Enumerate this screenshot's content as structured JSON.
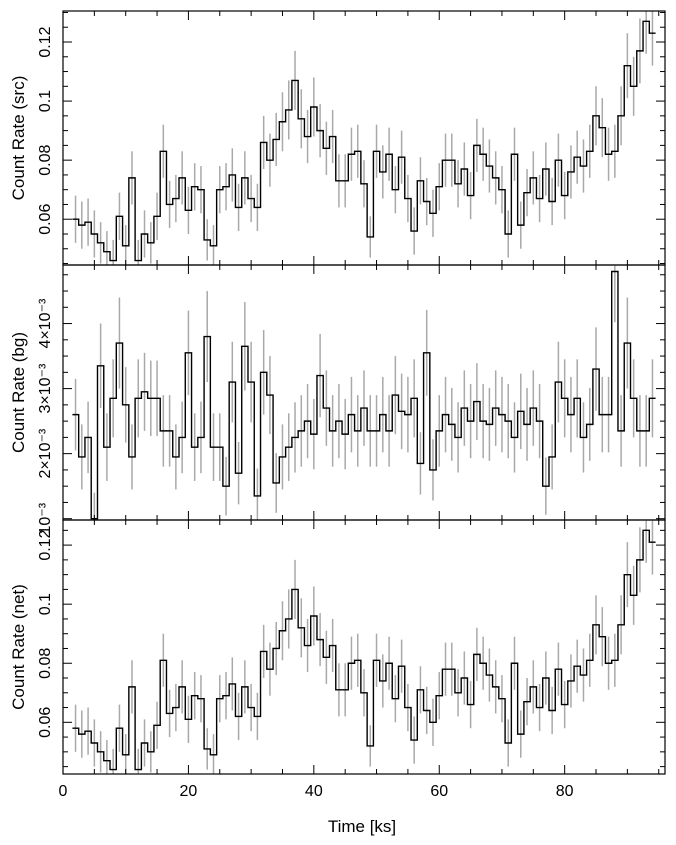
{
  "xlabel": "Time [ks]",
  "chart_data": [
    {
      "type": "line",
      "name": "src",
      "ylabel": "Count Rate (src)",
      "xlim": [
        0,
        96
      ],
      "ylim": [
        0.0445,
        0.1305
      ],
      "ytick_values": [
        0.06,
        0.08,
        0.1,
        0.12
      ],
      "ytick_labels": [
        "0.06",
        "0.08",
        "0.1",
        "0.12"
      ],
      "xtick_values": [
        0,
        20,
        40,
        60,
        80
      ],
      "xtick_labels": [
        "0",
        "20",
        "40",
        "60",
        "80"
      ],
      "show_xtick_labels": false,
      "bin_width": 1.0,
      "x": [
        2,
        3,
        4,
        5,
        6,
        7,
        8,
        9,
        10,
        11,
        12,
        13,
        14,
        15,
        16,
        17,
        18,
        19,
        20,
        21,
        22,
        23,
        24,
        25,
        26,
        27,
        28,
        29,
        30,
        31,
        32,
        33,
        34,
        35,
        36,
        37,
        38,
        39,
        40,
        41,
        42,
        43,
        44,
        45,
        46,
        47,
        48,
        49,
        50,
        51,
        52,
        53,
        54,
        55,
        56,
        57,
        58,
        59,
        60,
        61,
        62,
        63,
        64,
        65,
        66,
        67,
        68,
        69,
        70,
        71,
        72,
        73,
        74,
        75,
        76,
        77,
        78,
        79,
        80,
        81,
        82,
        83,
        84,
        85,
        86,
        87,
        88,
        89,
        90,
        91,
        92,
        93,
        94
      ],
      "y": [
        0.06,
        0.058,
        0.059,
        0.055,
        0.052,
        0.049,
        0.046,
        0.061,
        0.051,
        0.074,
        0.046,
        0.055,
        0.052,
        0.061,
        0.083,
        0.065,
        0.067,
        0.074,
        0.063,
        0.071,
        0.07,
        0.053,
        0.051,
        0.07,
        0.071,
        0.075,
        0.064,
        0.074,
        0.067,
        0.064,
        0.086,
        0.08,
        0.087,
        0.093,
        0.097,
        0.107,
        0.094,
        0.088,
        0.098,
        0.09,
        0.084,
        0.088,
        0.073,
        0.073,
        0.082,
        0.083,
        0.072,
        0.054,
        0.083,
        0.076,
        0.082,
        0.07,
        0.081,
        0.067,
        0.056,
        0.073,
        0.066,
        0.062,
        0.071,
        0.08,
        0.08,
        0.072,
        0.077,
        0.068,
        0.085,
        0.082,
        0.078,
        0.074,
        0.07,
        0.055,
        0.082,
        0.058,
        0.069,
        0.074,
        0.067,
        0.077,
        0.066,
        0.08,
        0.068,
        0.076,
        0.081,
        0.078,
        0.083,
        0.095,
        0.091,
        0.082,
        0.083,
        0.095,
        0.112,
        0.105,
        0.117,
        0.127,
        0.123
      ],
      "yerr": [
        0.008,
        0.008,
        0.008,
        0.008,
        0.007,
        0.007,
        0.007,
        0.008,
        0.007,
        0.009,
        0.007,
        0.008,
        0.007,
        0.008,
        0.009,
        0.008,
        0.008,
        0.009,
        0.008,
        0.008,
        0.008,
        0.007,
        0.007,
        0.008,
        0.008,
        0.009,
        0.008,
        0.009,
        0.008,
        0.008,
        0.009,
        0.009,
        0.009,
        0.01,
        0.01,
        0.01,
        0.01,
        0.009,
        0.01,
        0.009,
        0.009,
        0.009,
        0.009,
        0.009,
        0.009,
        0.009,
        0.008,
        0.007,
        0.009,
        0.009,
        0.009,
        0.008,
        0.009,
        0.008,
        0.008,
        0.008,
        0.008,
        0.008,
        0.008,
        0.009,
        0.009,
        0.008,
        0.009,
        0.008,
        0.009,
        0.009,
        0.009,
        0.009,
        0.008,
        0.008,
        0.009,
        0.008,
        0.008,
        0.009,
        0.008,
        0.009,
        0.008,
        0.009,
        0.008,
        0.009,
        0.009,
        0.009,
        0.009,
        0.01,
        0.01,
        0.009,
        0.009,
        0.01,
        0.011,
        0.01,
        0.011,
        0.011,
        0.011
      ]
    },
    {
      "type": "line",
      "name": "bg",
      "ylabel": "Count Rate (bg)",
      "xlim": [
        0,
        96
      ],
      "ylim": [
        0.00098,
        0.0049
      ],
      "ytick_values": [
        0.001,
        0.002,
        0.003,
        0.004
      ],
      "ytick_labels": [
        "10⁻³",
        "2×10⁻³",
        "3×10⁻³",
        "4×10⁻³"
      ],
      "xtick_values": [
        0,
        20,
        40,
        60,
        80
      ],
      "xtick_labels": [
        "0",
        "20",
        "40",
        "60",
        "80"
      ],
      "show_xtick_labels": false,
      "bin_width": 1.0,
      "x": [
        2,
        3,
        4,
        5,
        6,
        7,
        8,
        9,
        10,
        11,
        12,
        13,
        14,
        15,
        16,
        17,
        18,
        19,
        20,
        21,
        22,
        23,
        24,
        25,
        26,
        27,
        28,
        29,
        30,
        31,
        32,
        33,
        34,
        35,
        36,
        37,
        38,
        39,
        40,
        41,
        42,
        43,
        44,
        45,
        46,
        47,
        48,
        49,
        50,
        51,
        52,
        53,
        54,
        55,
        56,
        57,
        58,
        59,
        60,
        61,
        62,
        63,
        64,
        65,
        66,
        67,
        68,
        69,
        70,
        71,
        72,
        73,
        74,
        75,
        76,
        77,
        78,
        79,
        80,
        81,
        82,
        83,
        84,
        85,
        86,
        87,
        88,
        89,
        90,
        91,
        92,
        93,
        94
      ],
      "y": [
        0.0026,
        0.00195,
        0.00225,
        0.001,
        0.00335,
        0.0021,
        0.00285,
        0.0037,
        0.00275,
        0.00195,
        0.00285,
        0.00295,
        0.00285,
        0.00285,
        0.00235,
        0.00235,
        0.00195,
        0.00225,
        0.00355,
        0.0021,
        0.00225,
        0.0038,
        0.0021,
        0.0021,
        0.0015,
        0.0031,
        0.0017,
        0.00365,
        0.0031,
        0.00135,
        0.00325,
        0.0029,
        0.00155,
        0.00195,
        0.0021,
        0.00225,
        0.00235,
        0.0025,
        0.0023,
        0.0032,
        0.0027,
        0.00235,
        0.0025,
        0.0023,
        0.0026,
        0.00235,
        0.0027,
        0.00235,
        0.00235,
        0.0026,
        0.00235,
        0.0029,
        0.00265,
        0.0026,
        0.00285,
        0.00185,
        0.00355,
        0.00175,
        0.00235,
        0.0026,
        0.00245,
        0.00225,
        0.0027,
        0.0025,
        0.0028,
        0.0025,
        0.00245,
        0.0027,
        0.0026,
        0.0025,
        0.00225,
        0.00265,
        0.00245,
        0.0027,
        0.0025,
        0.0015,
        0.00195,
        0.0031,
        0.00285,
        0.0026,
        0.00285,
        0.00225,
        0.00245,
        0.0033,
        0.0026,
        0.0026,
        0.0048,
        0.00235,
        0.0037,
        0.00285,
        0.00235,
        0.00235,
        0.00285
      ],
      "yerr": [
        0.00055,
        0.0005,
        0.00055,
        0.0004,
        0.00065,
        0.00052,
        0.0006,
        0.0007,
        0.00058,
        0.0005,
        0.0006,
        0.0006,
        0.00058,
        0.00058,
        0.00055,
        0.00055,
        0.0005,
        0.00055,
        0.00065,
        0.00052,
        0.00055,
        0.0007,
        0.00052,
        0.00052,
        0.00045,
        0.00062,
        0.00048,
        0.00068,
        0.00062,
        0.00042,
        0.00065,
        0.0006,
        0.00046,
        0.0005,
        0.00052,
        0.00054,
        0.00055,
        0.00057,
        0.00054,
        0.00064,
        0.00058,
        0.00055,
        0.00057,
        0.00054,
        0.00058,
        0.00055,
        0.00058,
        0.00055,
        0.00055,
        0.00058,
        0.00055,
        0.0006,
        0.00058,
        0.00058,
        0.0006,
        0.00048,
        0.00066,
        0.00047,
        0.00055,
        0.00058,
        0.00056,
        0.00054,
        0.00058,
        0.00057,
        0.00059,
        0.00057,
        0.00056,
        0.00058,
        0.00058,
        0.00057,
        0.00054,
        0.00058,
        0.00056,
        0.00058,
        0.00057,
        0.00044,
        0.0005,
        0.00062,
        0.0006,
        0.00058,
        0.0006,
        0.00054,
        0.00056,
        0.00064,
        0.00058,
        0.00058,
        0.00078,
        0.00055,
        0.0007,
        0.0006,
        0.00055,
        0.00055,
        0.0006
      ]
    },
    {
      "type": "line",
      "name": "net",
      "ylabel": "Count Rate (net)",
      "xlim": [
        0,
        96
      ],
      "ylim": [
        0.0425,
        0.1285
      ],
      "ytick_values": [
        0.06,
        0.08,
        0.1,
        0.12
      ],
      "ytick_labels": [
        "0.06",
        "0.08",
        "0.1",
        "0.12"
      ],
      "xtick_values": [
        0,
        20,
        40,
        60,
        80
      ],
      "xtick_labels": [
        "0",
        "20",
        "40",
        "60",
        "80"
      ],
      "show_xtick_labels": true,
      "bin_width": 1.0,
      "x": [
        2,
        3,
        4,
        5,
        6,
        7,
        8,
        9,
        10,
        11,
        12,
        13,
        14,
        15,
        16,
        17,
        18,
        19,
        20,
        21,
        22,
        23,
        24,
        25,
        26,
        27,
        28,
        29,
        30,
        31,
        32,
        33,
        34,
        35,
        36,
        37,
        38,
        39,
        40,
        41,
        42,
        43,
        44,
        45,
        46,
        47,
        48,
        49,
        50,
        51,
        52,
        53,
        54,
        55,
        56,
        57,
        58,
        59,
        60,
        61,
        62,
        63,
        64,
        65,
        66,
        67,
        68,
        69,
        70,
        71,
        72,
        73,
        74,
        75,
        76,
        77,
        78,
        79,
        80,
        81,
        82,
        83,
        84,
        85,
        86,
        87,
        88,
        89,
        90,
        91,
        92,
        93,
        94
      ],
      "y": [
        0.058,
        0.056,
        0.057,
        0.053,
        0.05,
        0.047,
        0.044,
        0.058,
        0.049,
        0.072,
        0.044,
        0.053,
        0.05,
        0.059,
        0.081,
        0.063,
        0.065,
        0.072,
        0.061,
        0.069,
        0.068,
        0.051,
        0.049,
        0.068,
        0.069,
        0.073,
        0.062,
        0.072,
        0.065,
        0.062,
        0.084,
        0.078,
        0.085,
        0.091,
        0.095,
        0.105,
        0.092,
        0.086,
        0.096,
        0.088,
        0.082,
        0.086,
        0.071,
        0.071,
        0.08,
        0.081,
        0.07,
        0.052,
        0.081,
        0.074,
        0.08,
        0.068,
        0.079,
        0.065,
        0.054,
        0.071,
        0.064,
        0.06,
        0.069,
        0.078,
        0.078,
        0.07,
        0.075,
        0.066,
        0.083,
        0.08,
        0.076,
        0.072,
        0.068,
        0.053,
        0.08,
        0.056,
        0.067,
        0.072,
        0.065,
        0.075,
        0.064,
        0.078,
        0.066,
        0.074,
        0.079,
        0.076,
        0.081,
        0.093,
        0.089,
        0.08,
        0.081,
        0.093,
        0.11,
        0.103,
        0.115,
        0.125,
        0.121
      ],
      "yerr": [
        0.008,
        0.008,
        0.008,
        0.008,
        0.007,
        0.007,
        0.007,
        0.008,
        0.007,
        0.009,
        0.007,
        0.008,
        0.007,
        0.008,
        0.009,
        0.008,
        0.008,
        0.009,
        0.008,
        0.008,
        0.008,
        0.007,
        0.007,
        0.008,
        0.008,
        0.009,
        0.008,
        0.009,
        0.008,
        0.008,
        0.009,
        0.009,
        0.009,
        0.01,
        0.01,
        0.01,
        0.01,
        0.009,
        0.01,
        0.009,
        0.009,
        0.009,
        0.009,
        0.009,
        0.009,
        0.009,
        0.008,
        0.007,
        0.009,
        0.009,
        0.009,
        0.008,
        0.009,
        0.008,
        0.008,
        0.008,
        0.008,
        0.008,
        0.008,
        0.009,
        0.009,
        0.008,
        0.009,
        0.008,
        0.009,
        0.009,
        0.009,
        0.009,
        0.008,
        0.008,
        0.009,
        0.008,
        0.008,
        0.009,
        0.008,
        0.009,
        0.008,
        0.009,
        0.008,
        0.009,
        0.009,
        0.009,
        0.009,
        0.01,
        0.01,
        0.009,
        0.009,
        0.01,
        0.011,
        0.01,
        0.011,
        0.011,
        0.011
      ]
    }
  ]
}
